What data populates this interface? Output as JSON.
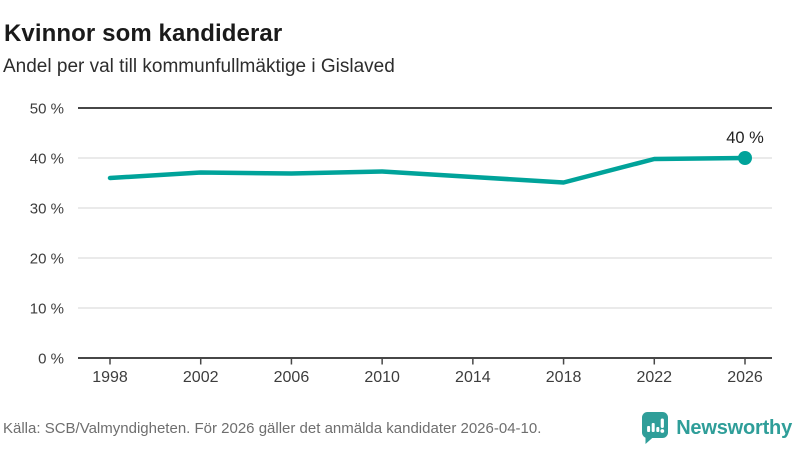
{
  "header": {
    "title": "Kvinnor som kandiderar",
    "subtitle": "Andel per val till kommunfullmäktige i Gislaved"
  },
  "footer": {
    "source": "Källa: SCB/Valmyndigheten. För 2026 gäller det anmälda kandidater 2026-04-10.",
    "brand_name": "Newsworthy"
  },
  "colors": {
    "line": "#00a39a",
    "brand": "#2f9e99",
    "axis_strong": "#474747",
    "grid": "#e3e3e3",
    "tick_text": "#3d3d3d",
    "annotation_text": "#222222",
    "title_text": "#1a1a1a",
    "subtitle_text": "#2d2d2d",
    "source_text": "#6e6e6e"
  },
  "chart_data": {
    "type": "line",
    "title": "Kvinnor som kandiderar",
    "subtitle": "Andel per val till kommunfullmäktige i Gislaved",
    "x": [
      1998,
      2002,
      2006,
      2010,
      2014,
      2018,
      2022,
      2026
    ],
    "xtick_labels": [
      "1998",
      "2002",
      "2006",
      "2010",
      "2014",
      "2018",
      "2022",
      "2026"
    ],
    "series": [
      {
        "name": "Andel kvinnor som kandiderar",
        "values": [
          36.0,
          37.1,
          36.9,
          37.3,
          36.2,
          35.1,
          39.8,
          40.0
        ]
      }
    ],
    "ylim": [
      0,
      50
    ],
    "yticks": [
      0,
      10,
      20,
      30,
      40,
      50
    ],
    "ytick_labels": [
      "0 %",
      "10 %",
      "20 %",
      "30 %",
      "40 %",
      "50 %"
    ],
    "strong_gridlines": [
      0,
      50
    ],
    "grid": "horizontal",
    "legend": "none",
    "annotation": {
      "x": 2026,
      "y": 40,
      "label": "40 %"
    }
  }
}
